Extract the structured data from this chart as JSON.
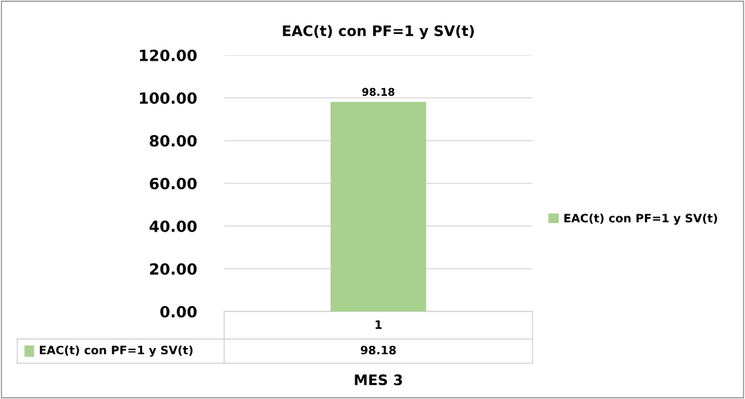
{
  "chart_data": {
    "type": "bar",
    "title": "EAC(t) con PF=1 y SV(t)",
    "xlabel": "MES 3",
    "categories": [
      "1"
    ],
    "series": [
      {
        "name": "EAC(t) con PF=1 y SV(t)",
        "color": "#a9d18e",
        "values": [
          98.18
        ],
        "value_labels": [
          "98.18"
        ]
      }
    ],
    "annotations": [
      "98.18"
    ],
    "ylim": [
      0,
      120
    ],
    "yticks": [
      {
        "value": 0,
        "label": "0.00"
      },
      {
        "value": 20,
        "label": "20.00"
      },
      {
        "value": 40,
        "label": "40.00"
      },
      {
        "value": 60,
        "label": "60.00"
      },
      {
        "value": 80,
        "label": "80.00"
      },
      {
        "value": 100,
        "label": "100.00"
      },
      {
        "value": 120,
        "label": "120.00"
      }
    ],
    "grid": "y",
    "legend": "right",
    "data_labels": true
  }
}
